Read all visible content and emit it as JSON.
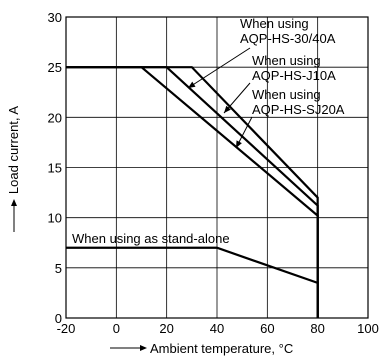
{
  "chart_data": {
    "type": "line",
    "xlabel": "Ambient temperature, °C",
    "ylabel": "Load current, A",
    "xlim": [
      -20,
      100
    ],
    "ylim": [
      0,
      30
    ],
    "x_ticks": [
      "-20",
      "0",
      "20",
      "40",
      "60",
      "80",
      "100"
    ],
    "y_ticks": [
      "0",
      "5",
      "10",
      "15",
      "20",
      "25",
      "30"
    ],
    "grid": true,
    "series": [
      {
        "name": "When using AQP-HS-30/40A",
        "x": [
          -20,
          30,
          80,
          80
        ],
        "y": [
          25,
          25,
          12,
          0
        ]
      },
      {
        "name": "When using AQP-HS-J10A",
        "x": [
          -20,
          20,
          80,
          80
        ],
        "y": [
          25,
          25,
          11.2,
          0
        ]
      },
      {
        "name": "When using AQP-HS-SJ20A",
        "x": [
          -20,
          10,
          80,
          80
        ],
        "y": [
          25,
          25,
          10.2,
          0
        ]
      },
      {
        "name": "When using as stand-alone",
        "x": [
          -20,
          40,
          80,
          80
        ],
        "y": [
          7,
          7,
          3.5,
          0
        ]
      }
    ],
    "annotations": [
      {
        "lines": [
          "When using",
          "AQP-HS-30/40A"
        ]
      },
      {
        "lines": [
          "When using",
          "AQP-HS-J10A"
        ]
      },
      {
        "lines": [
          "When using",
          "AQP-HS-SJ20A"
        ]
      },
      {
        "lines": [
          "When using as stand-alone"
        ]
      }
    ]
  }
}
